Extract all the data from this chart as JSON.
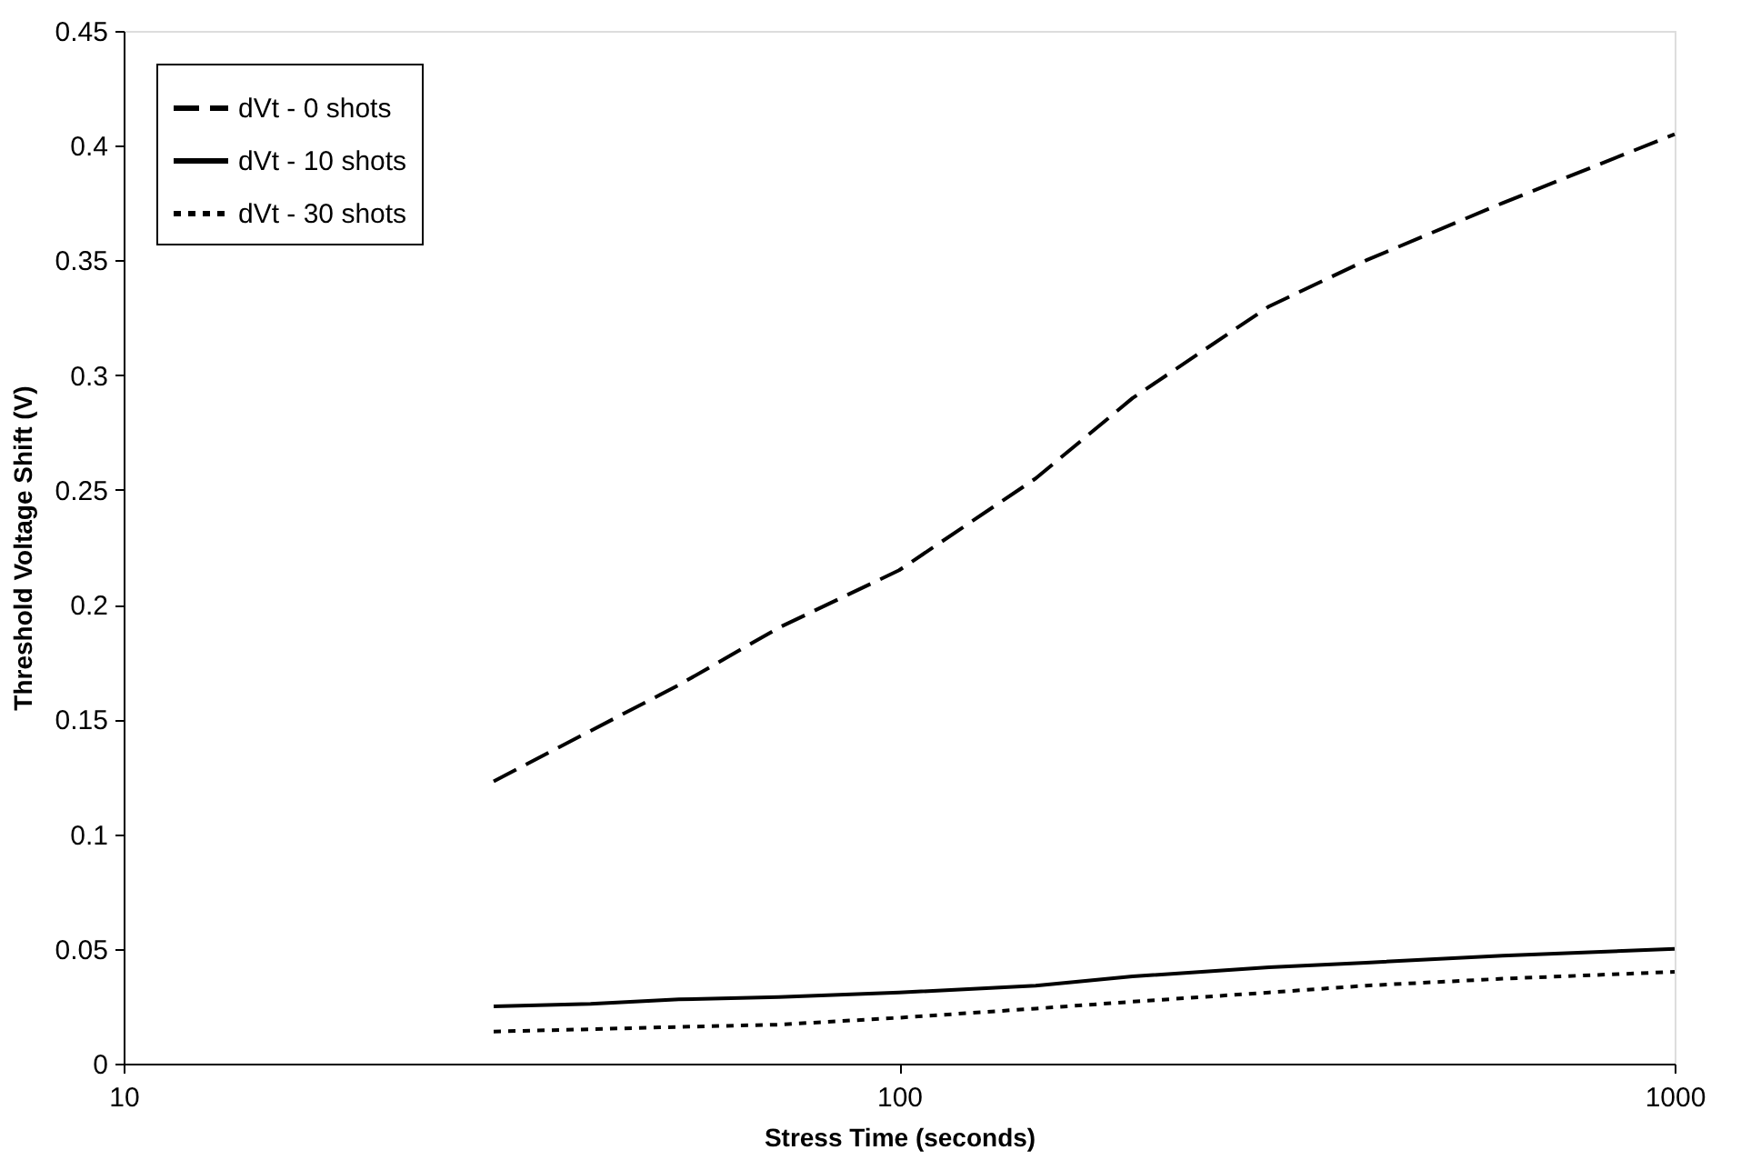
{
  "chart_data": {
    "type": "line",
    "xlabel": "Stress Time (seconds)",
    "ylabel": "Threshold Voltage Shift (V)",
    "log": "x",
    "xlim": [
      10,
      1000
    ],
    "xticks": [
      10,
      100,
      1000
    ],
    "ylim": [
      0,
      0.45
    ],
    "yticks": [
      0,
      0.05,
      0.1,
      0.15,
      0.2,
      0.25,
      0.3,
      0.35,
      0.4,
      0.45
    ],
    "grid": false,
    "legend": "top left",
    "marker": "none",
    "series": [
      {
        "name": "dVt - 0 shots",
        "color": "#000000",
        "line_style": "dashed",
        "x": [
          30,
          40,
          52,
          70,
          100,
          150,
          200,
          300,
          400,
          600,
          1000
        ],
        "values": [
          0.123,
          0.145,
          0.165,
          0.19,
          0.215,
          0.255,
          0.29,
          0.33,
          0.35,
          0.375,
          0.405
        ]
      },
      {
        "name": "dVt - 10 shots",
        "color": "#000000",
        "line_style": "solid",
        "x": [
          30,
          40,
          52,
          70,
          100,
          150,
          200,
          300,
          400,
          600,
          1000
        ],
        "values": [
          0.025,
          0.026,
          0.028,
          0.029,
          0.031,
          0.034,
          0.038,
          0.042,
          0.044,
          0.047,
          0.05
        ]
      },
      {
        "name": "dVt - 30 shots",
        "color": "#000000",
        "line_style": "dotted",
        "x": [
          30,
          40,
          52,
          70,
          100,
          150,
          200,
          300,
          400,
          600,
          1000
        ],
        "values": [
          0.014,
          0.015,
          0.016,
          0.017,
          0.02,
          0.024,
          0.027,
          0.031,
          0.034,
          0.037,
          0.04
        ]
      }
    ]
  }
}
